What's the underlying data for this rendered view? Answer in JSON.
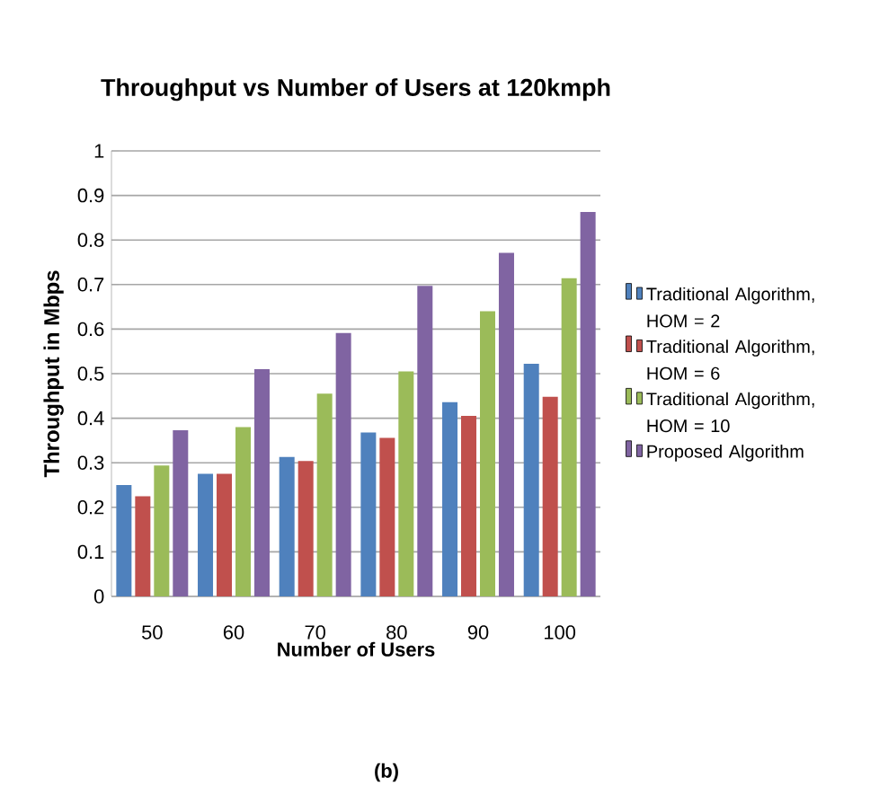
{
  "chart_data": {
    "type": "bar",
    "title": "Throughput vs Number of Users at 120kmph",
    "xlabel": "Number of Users",
    "ylabel": "Throughput in Mbps",
    "annotations": [
      "(b)"
    ],
    "categories": [
      "50",
      "60",
      "70",
      "80",
      "90",
      "100"
    ],
    "series": [
      {
        "name": "Traditional Algorithm, HOM = 2",
        "color": "#4f81bd",
        "values": [
          0.25,
          0.275,
          0.313,
          0.368,
          0.436,
          0.522
        ]
      },
      {
        "name": "Traditional Algorithm, HOM = 6",
        "color": "#c0504d",
        "values": [
          0.225,
          0.275,
          0.304,
          0.356,
          0.405,
          0.448
        ]
      },
      {
        "name": "Traditional Algorithm, HOM = 10",
        "color": "#9bbb59",
        "values": [
          0.294,
          0.38,
          0.455,
          0.505,
          0.64,
          0.714
        ]
      },
      {
        "name": "Proposed Algorithm",
        "color": "#8064a2",
        "values": [
          0.373,
          0.51,
          0.591,
          0.697,
          0.771,
          0.863
        ]
      }
    ],
    "ylim": [
      0,
      1
    ],
    "yticks": [
      0,
      0.1,
      0.2,
      0.3,
      0.4,
      0.5,
      0.6,
      0.7,
      0.8,
      0.9,
      1
    ],
    "grid": "y",
    "legend": "right"
  }
}
